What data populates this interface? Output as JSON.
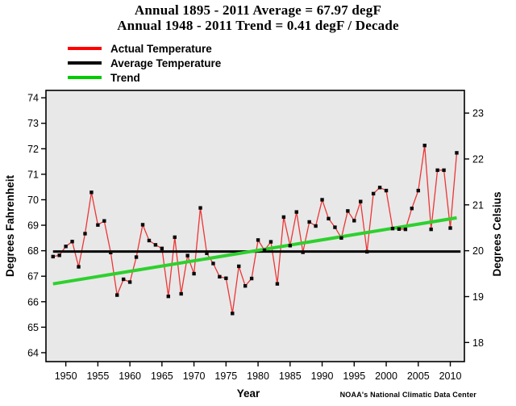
{
  "header": {
    "title_line1": "Annual 1895 - 2011 Average = 67.97 degF",
    "title_line2": "Annual 1948 - 2011 Trend = 0.41 degF / Decade"
  },
  "legend": {
    "items": [
      {
        "label": "Actual Temperature",
        "color": "#ff0000"
      },
      {
        "label": "Average Temperature",
        "color": "#000000"
      },
      {
        "label": "Trend",
        "color": "#00cc00"
      }
    ]
  },
  "footer": {
    "xlabel": "Year",
    "credit": "NOAA's National Climatic Data Center"
  },
  "chart_data": {
    "type": "line",
    "title": "Annual 1895 - 2011 Average = 67.97 degF; Annual 1948 - 2011 Trend = 0.41 degF / Decade",
    "xlabel": "Year",
    "ylabel_left": "Degrees Fahrenheit",
    "ylabel_right": "Degrees Celsius",
    "grid": false,
    "plot_bg": "#e8e8e8",
    "legend_position": "top-left",
    "xlim": [
      1946.9,
      2012.2
    ],
    "ylim_fahrenheit": [
      63.65,
      74.29
    ],
    "x_ticks": [
      1950,
      1955,
      1960,
      1965,
      1970,
      1975,
      1980,
      1985,
      1990,
      1995,
      2000,
      2005,
      2010
    ],
    "y_ticks_fahrenheit": [
      64,
      65,
      66,
      67,
      68,
      69,
      70,
      71,
      72,
      73,
      74
    ],
    "y_ticks_celsius": [
      18,
      19,
      20,
      21,
      22,
      23
    ],
    "average_value_degf": 67.97,
    "trend_degf_per_decade": 0.41,
    "years": [
      1948,
      1949,
      1950,
      1951,
      1952,
      1953,
      1954,
      1955,
      1956,
      1957,
      1958,
      1959,
      1960,
      1961,
      1962,
      1963,
      1964,
      1965,
      1966,
      1967,
      1968,
      1969,
      1970,
      1971,
      1972,
      1973,
      1974,
      1975,
      1976,
      1977,
      1978,
      1979,
      1980,
      1981,
      1982,
      1983,
      1984,
      1985,
      1986,
      1987,
      1988,
      1989,
      1990,
      1991,
      1992,
      1993,
      1994,
      1995,
      1996,
      1997,
      1998,
      1999,
      2000,
      2001,
      2002,
      2003,
      2004,
      2005,
      2006,
      2007,
      2008,
      2009,
      2010,
      2011
    ],
    "series": [
      {
        "name": "Actual Temperature",
        "color": "#ee3535",
        "marker_color": "#0a0a0a",
        "values": [
          67.77,
          67.82,
          68.17,
          68.36,
          67.37,
          68.67,
          70.29,
          69.01,
          69.17,
          67.93,
          66.26,
          66.88,
          66.77,
          67.75,
          69.02,
          68.4,
          68.23,
          68.09,
          66.21,
          68.53,
          66.31,
          67.81,
          67.1,
          69.68,
          67.9,
          67.5,
          66.98,
          66.92,
          65.54,
          67.39,
          66.62,
          66.91,
          68.42,
          68.02,
          68.35,
          66.7,
          69.32,
          68.2,
          69.52,
          67.94,
          69.13,
          68.97,
          70.0,
          69.26,
          68.92,
          68.5,
          69.56,
          69.18,
          69.93,
          67.96,
          70.24,
          70.48,
          70.36,
          68.87,
          68.85,
          68.84,
          69.66,
          70.36,
          72.13,
          68.84,
          71.16,
          71.16,
          68.89,
          71.84
        ]
      },
      {
        "name": "Average Temperature",
        "color": "#000000",
        "value": 67.97,
        "span_years": [
          1948,
          2011.6
        ]
      },
      {
        "name": "Trend",
        "color": "#2ed02e",
        "x": [
          1948,
          2011
        ],
        "y": [
          66.7,
          69.29
        ]
      }
    ]
  }
}
